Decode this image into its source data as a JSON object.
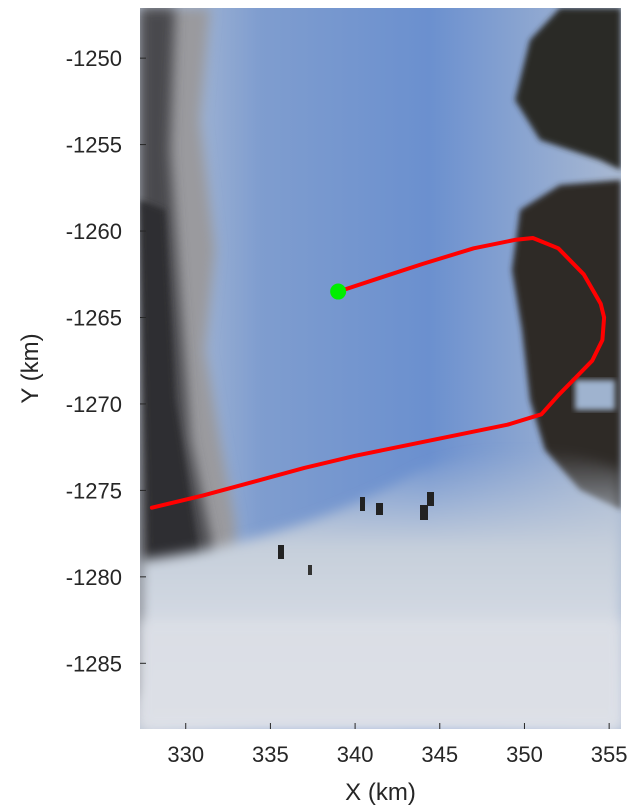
{
  "chart_data": {
    "type": "line",
    "title": "",
    "xlabel": "X (km)",
    "ylabel": "Y (km)",
    "xlim": [
      327.3,
      355.7
    ],
    "ylim": [
      -1288.8,
      -1247.1
    ],
    "xticks": [
      330,
      335,
      340,
      345,
      350,
      355
    ],
    "yticks": [
      -1285,
      -1280,
      -1275,
      -1270,
      -1265,
      -1260,
      -1255,
      -1250
    ],
    "grid": false,
    "legend": "none",
    "background": "satellite imagery of glacier outlet (blue ice flowing between dark rock with white sea ice / snow at bottom)",
    "series": [
      {
        "color": "#ff0000",
        "x": [
          328.0,
          331.0,
          334.0,
          337.0,
          340.0,
          343.0,
          346.0,
          349.0,
          351.0,
          352.0,
          353.0,
          354.0,
          354.6,
          354.7,
          354.5,
          353.5,
          352.0,
          350.5,
          349.5,
          347.0,
          344.0,
          341.5,
          339.0
        ],
        "y": [
          -1276.0,
          -1275.3,
          -1274.5,
          -1273.7,
          -1273.0,
          -1272.4,
          -1271.8,
          -1271.2,
          -1270.6,
          -1269.5,
          -1268.5,
          -1267.5,
          -1266.3,
          -1265.0,
          -1264.2,
          -1262.5,
          -1261.0,
          -1260.4,
          -1260.5,
          -1261.0,
          -1261.9,
          -1262.7,
          -1263.5
        ]
      }
    ],
    "marker": {
      "x": 339.0,
      "y": -1263.5,
      "color": "#00ee00"
    }
  },
  "colors": {
    "ice": "#6f90c8",
    "ice_light": "#8fa9d4",
    "rock": "#2a2a2a",
    "snow": "#d8dde6",
    "axis": "#262626"
  }
}
